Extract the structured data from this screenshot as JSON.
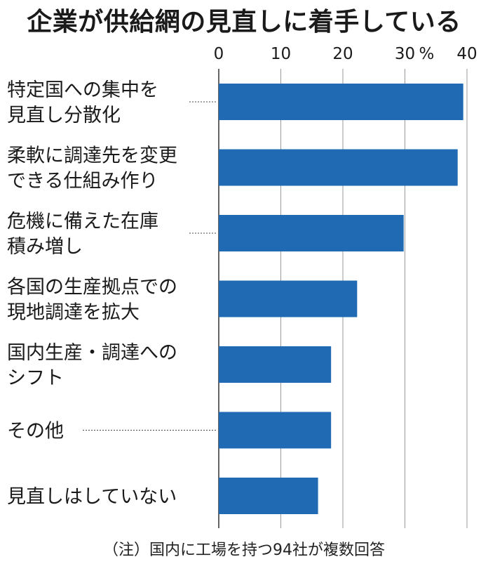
{
  "chart_data": {
    "type": "bar",
    "orientation": "horizontal",
    "title": "企業が供給網の見直しに着手している",
    "unit_label": "%",
    "categories": [
      [
        "特定国への集中を",
        "見直し分散化"
      ],
      [
        "柔軟に調達先を変更",
        "できる仕組み作り"
      ],
      [
        "危機に備えた在庫",
        "積み増し"
      ],
      [
        "各国の生産拠点での",
        "現地調達を拡大"
      ],
      [
        "国内生産・調達への",
        "シフト"
      ],
      [
        "その他"
      ],
      [
        "見直しはしていない"
      ]
    ],
    "values": [
      39.4,
      38.5,
      29.8,
      22.3,
      18.1,
      18.1,
      16.0
    ],
    "xlim": [
      0,
      40
    ],
    "ticks": [
      "0",
      "10",
      "20",
      "30",
      "40"
    ],
    "grid": true,
    "bar_color": "#1f6ab3",
    "note": "（注）国内に工場を持つ94社が複数回答"
  }
}
